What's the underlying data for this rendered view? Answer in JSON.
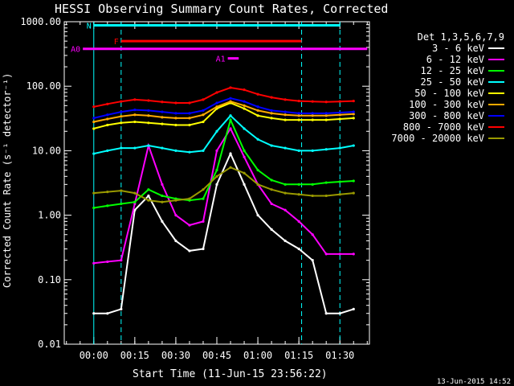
{
  "chart_data": {
    "type": "line",
    "title": "HESSI Observing Summary Count Rates, Corrected",
    "xlabel": "Start Time (11-Jun-15 23:56:22)",
    "ylabel": "Corrected Count Rate (s⁻¹ detector⁻¹)",
    "footer": "13-Jun-2015 14:52",
    "xlim": [
      -3.6,
      33.6
    ],
    "ylim": [
      0.01,
      1000
    ],
    "yscale": "log",
    "xticks": [
      {
        "t": 0,
        "label": "00:00"
      },
      {
        "t": 15,
        "label": "00:15"
      },
      {
        "t": 30,
        "label": "00:30"
      },
      {
        "t": 45,
        "label": "00:45"
      },
      {
        "t": 60,
        "label": "01:00"
      },
      {
        "t": 75,
        "label": "01:15"
      },
      {
        "t": 90,
        "label": "01:30"
      }
    ],
    "yticks": [
      {
        "v": 0.01,
        "label": "0.01"
      },
      {
        "v": 0.1,
        "label": "0.10"
      },
      {
        "v": 1,
        "label": "1.00"
      },
      {
        "v": 10,
        "label": "10.00"
      },
      {
        "v": 100,
        "label": "100.00"
      },
      {
        "v": 1000,
        "label": "1000.00"
      }
    ],
    "legend_title": "Det 1,3,5,6,7,9",
    "legend_position": "top-right outside",
    "x_minutes": [
      0,
      5,
      10,
      15,
      20,
      25,
      30,
      35,
      40,
      45,
      50,
      55,
      60,
      65,
      70,
      75,
      80,
      85,
      90,
      95
    ],
    "series": [
      {
        "name": "3 - 6 keV",
        "color": "#ffffff",
        "values": [
          0.03,
          0.03,
          0.035,
          1.2,
          2,
          0.8,
          0.4,
          0.28,
          0.3,
          3,
          9,
          3,
          1,
          0.6,
          0.4,
          0.3,
          0.2,
          0.03,
          0.03,
          0.035
        ]
      },
      {
        "name": "6 - 12 keV",
        "color": "#ff00ff",
        "values": [
          0.18,
          0.19,
          0.2,
          1.5,
          12,
          3,
          1,
          0.7,
          0.8,
          10,
          22,
          8,
          3,
          1.5,
          1.2,
          0.8,
          0.5,
          0.25,
          0.25,
          0.25
        ]
      },
      {
        "name": "12 - 25 keV",
        "color": "#00ff00",
        "values": [
          1.3,
          1.4,
          1.5,
          1.6,
          2.5,
          2,
          1.8,
          1.7,
          1.8,
          5,
          30,
          10,
          5,
          3.5,
          3,
          3,
          3,
          3.2,
          3.3,
          3.4
        ]
      },
      {
        "name": "25 - 50 keV",
        "color": "#00ffff",
        "values": [
          9,
          10,
          11,
          11,
          12,
          11,
          10,
          9.5,
          10,
          20,
          35,
          22,
          15,
          12,
          11,
          10,
          10,
          10.5,
          11,
          12
        ]
      },
      {
        "name": "50 - 100 keV",
        "color": "#ffff00",
        "values": [
          22,
          25,
          27,
          28,
          27,
          26,
          25,
          25,
          28,
          45,
          55,
          45,
          35,
          32,
          30,
          30,
          30,
          30,
          31,
          32
        ]
      },
      {
        "name": "100 - 300 keV",
        "color": "#ffaa00",
        "values": [
          28,
          31,
          34,
          36,
          35,
          33,
          32,
          32,
          36,
          48,
          58,
          50,
          42,
          38,
          36,
          35,
          35,
          35,
          36,
          37
        ]
      },
      {
        "name": "300 - 800 keV",
        "color": "#0000ff",
        "values": [
          32,
          36,
          40,
          43,
          42,
          40,
          38,
          38,
          42,
          55,
          65,
          58,
          48,
          42,
          40,
          38,
          38,
          38,
          39,
          40
        ]
      },
      {
        "name": "800 - 7000 keV",
        "color": "#ff0000",
        "values": [
          48,
          53,
          58,
          62,
          60,
          57,
          55,
          55,
          62,
          80,
          95,
          88,
          75,
          67,
          62,
          59,
          58,
          57,
          58,
          59
        ]
      },
      {
        "name": "7000 - 20000 keV",
        "color": "#999900",
        "values": [
          2.2,
          2.3,
          2.4,
          2.2,
          1.7,
          1.6,
          1.7,
          1.8,
          2.5,
          4,
          5.5,
          4.5,
          3,
          2.5,
          2.2,
          2.1,
          2.0,
          2.0,
          2.1,
          2.2
        ]
      }
    ],
    "annotations": [
      {
        "label": "N",
        "color": "#00ffff",
        "t0": 0,
        "t1": 90,
        "level": 880
      },
      {
        "label": "F",
        "color": "#ff0000",
        "t0": 10,
        "t1": 76,
        "level": 500
      },
      {
        "label": "A0",
        "color": "#ff00ff",
        "t0": -4,
        "t1": 100,
        "level": 380
      },
      {
        "label": "A1",
        "color": "#ff00ff",
        "t0": 49,
        "t1": 53,
        "level": 270
      }
    ]
  }
}
